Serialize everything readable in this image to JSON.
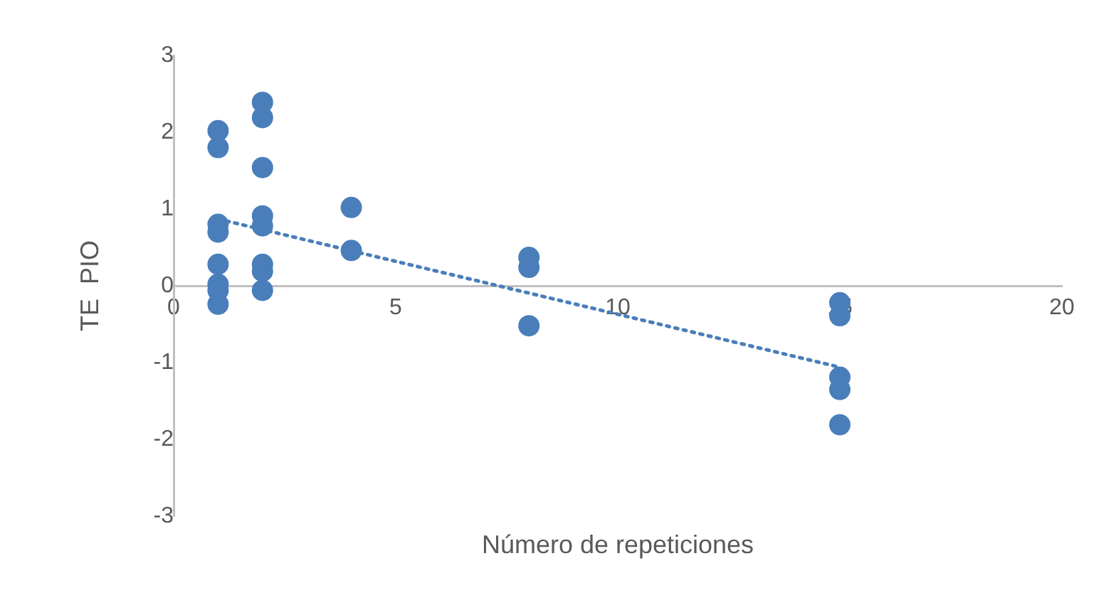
{
  "chart_data": {
    "type": "scatter",
    "xlabel": "Número de repeticiones",
    "ylabel": "TE  PIO",
    "xlim": [
      0,
      20
    ],
    "xticks": [
      0,
      5,
      10,
      15,
      20
    ],
    "ylim": [
      -3,
      3
    ],
    "yticks": [
      -3,
      -2,
      -1,
      0,
      1,
      2,
      3
    ],
    "grid": false,
    "legend": false,
    "marker": "circle",
    "series": [
      {
        "type": "scatter",
        "color": "#4a7ebb",
        "x": [
          1,
          1,
          1,
          1,
          1,
          1,
          1,
          1,
          2,
          2,
          2,
          2,
          2,
          2,
          2,
          2,
          4,
          4,
          8,
          8,
          8,
          15,
          15,
          15,
          15,
          15
        ],
        "values": [
          2.02,
          1.8,
          0.8,
          0.7,
          0.28,
          0.02,
          -0.06,
          -0.24,
          2.39,
          2.19,
          1.54,
          0.91,
          0.78,
          0.28,
          0.19,
          -0.06,
          1.02,
          0.46,
          0.37,
          0.24,
          -0.52,
          -0.22,
          -0.39,
          -1.19,
          -1.35,
          -1.81
        ]
      },
      {
        "type": "line",
        "color": "#4a7ebb",
        "line_style": "dotted",
        "marker": "none",
        "x": [
          1,
          15
        ],
        "values": [
          0.87,
          -1.06
        ]
      }
    ]
  }
}
